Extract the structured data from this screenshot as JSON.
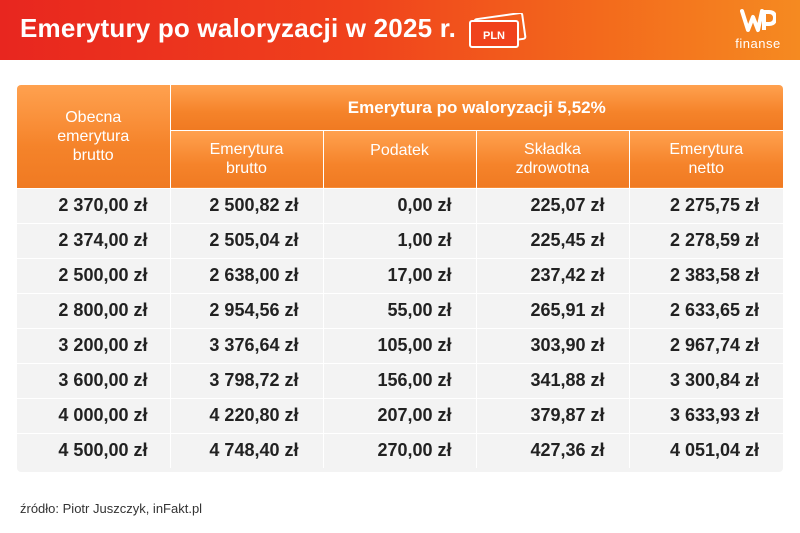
{
  "header": {
    "title": "Emerytury po waloryzacji w 2025 r.",
    "icon_label": "PLN",
    "logo_text": "finanse",
    "colors": {
      "banner_start": "#e8261f",
      "banner_end": "#f58a21",
      "table_header": "#f5832a"
    }
  },
  "table": {
    "first_header": "Obecna emerytura brutto",
    "group_header": "Emerytura po waloryzacji 5,52%",
    "sub_headers": [
      "Emerytura brutto",
      "Podatek",
      "Składka zdrowotna",
      "Emerytura netto"
    ],
    "rows": [
      [
        "2 370,00 zł",
        "2 500,82 zł",
        "0,00 zł",
        "225,07 zł",
        "2 275,75 zł"
      ],
      [
        "2 374,00 zł",
        "2 505,04 zł",
        "1,00 zł",
        "225,45 zł",
        "2 278,59 zł"
      ],
      [
        "2 500,00 zł",
        "2 638,00 zł",
        "17,00 zł",
        "237,42 zł",
        "2 383,58 zł"
      ],
      [
        "2 800,00 zł",
        "2 954,56 zł",
        "55,00 zł",
        "265,91 zł",
        "2 633,65 zł"
      ],
      [
        "3 200,00 zł",
        "3 376,64 zł",
        "105,00 zł",
        "303,90 zł",
        "2 967,74 zł"
      ],
      [
        "3 600,00 zł",
        "3 798,72 zł",
        "156,00 zł",
        "341,88 zł",
        "3 300,84 zł"
      ],
      [
        "4 000,00 zł",
        "4 220,80 zł",
        "207,00 zł",
        "379,87 zł",
        "3 633,93 zł"
      ],
      [
        "4 500,00 zł",
        "4 748,40 zł",
        "270,00 zł",
        "427,36 zł",
        "4 051,04 zł"
      ]
    ]
  },
  "footer": {
    "source": "źródło: Piotr Juszczyk, inFakt.pl"
  }
}
